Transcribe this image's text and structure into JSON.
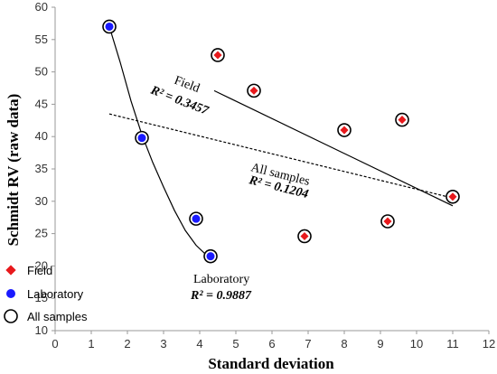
{
  "chart_data": {
    "type": "scatter",
    "xlabel": "Standard deviation",
    "ylabel": "Schmidt RV (raw data)",
    "xlim": [
      0,
      12
    ],
    "ylim": [
      10,
      60
    ],
    "xticks": [
      "0",
      "1",
      "2",
      "3",
      "4",
      "5",
      "6",
      "7",
      "8",
      "9",
      "10",
      "11",
      "12"
    ],
    "yticks": [
      "10",
      "15",
      "20",
      "25",
      "30",
      "35",
      "40",
      "45",
      "50",
      "55",
      "60"
    ],
    "grid": false,
    "legend_position": "bottom-left",
    "series": [
      {
        "name": "Field",
        "marker": "diamond",
        "color": "#e8191c",
        "points": [
          {
            "x": 4.5,
            "y": 52.6
          },
          {
            "x": 5.5,
            "y": 47.1
          },
          {
            "x": 8.0,
            "y": 41.0
          },
          {
            "x": 9.6,
            "y": 42.6
          },
          {
            "x": 6.9,
            "y": 24.6
          },
          {
            "x": 9.2,
            "y": 26.9
          },
          {
            "x": 11.0,
            "y": 30.7
          }
        ]
      },
      {
        "name": "Laboratory",
        "marker": "circle",
        "color": "#1a1aff",
        "points": [
          {
            "x": 1.5,
            "y": 57.0
          },
          {
            "x": 2.4,
            "y": 39.8
          },
          {
            "x": 3.9,
            "y": 27.3
          },
          {
            "x": 4.3,
            "y": 21.5
          }
        ]
      },
      {
        "name": "All samples",
        "marker": "open-circle",
        "color": "#000000",
        "points": [
          {
            "x": 1.5,
            "y": 57.0
          },
          {
            "x": 2.4,
            "y": 39.8
          },
          {
            "x": 3.9,
            "y": 27.3
          },
          {
            "x": 4.3,
            "y": 21.5
          },
          {
            "x": 4.5,
            "y": 52.6
          },
          {
            "x": 5.5,
            "y": 47.1
          },
          {
            "x": 8.0,
            "y": 41.0
          },
          {
            "x": 9.6,
            "y": 42.6
          },
          {
            "x": 6.9,
            "y": 24.6
          },
          {
            "x": 9.2,
            "y": 26.9
          },
          {
            "x": 11.0,
            "y": 30.7
          }
        ]
      }
    ],
    "trendlines": [
      {
        "series": "Field",
        "style": "solid",
        "label": "Field",
        "r2_text": "R² = 0.3457",
        "from": {
          "x": 4.4,
          "y": 47.1
        },
        "to": {
          "x": 11.0,
          "y": 29.3
        }
      },
      {
        "series": "All samples",
        "style": "dotted",
        "label": "All samples",
        "r2_text": "R² = 0.1204",
        "from": {
          "x": 1.5,
          "y": 43.5
        },
        "to": {
          "x": 11.0,
          "y": 30.5
        }
      },
      {
        "series": "Laboratory",
        "style": "solid-curve",
        "label": "Laboratory",
        "r2_text": "R² = 0.9887",
        "points": [
          {
            "x": 1.5,
            "y": 57.0
          },
          {
            "x": 1.8,
            "y": 51.5
          },
          {
            "x": 2.1,
            "y": 45.5
          },
          {
            "x": 2.4,
            "y": 40.3
          },
          {
            "x": 2.7,
            "y": 36.0
          },
          {
            "x": 3.0,
            "y": 32.2
          },
          {
            "x": 3.3,
            "y": 28.6
          },
          {
            "x": 3.6,
            "y": 25.5
          },
          {
            "x": 3.9,
            "y": 23.2
          },
          {
            "x": 4.2,
            "y": 21.6
          },
          {
            "x": 4.4,
            "y": 21.1
          }
        ]
      }
    ]
  }
}
